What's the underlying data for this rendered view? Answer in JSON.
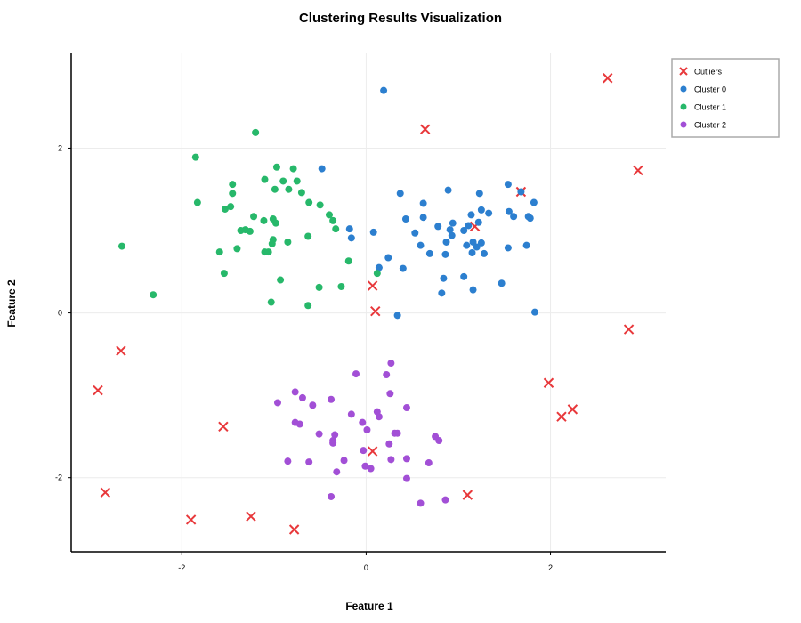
{
  "chart_data": {
    "type": "scatter",
    "title": "Clustering Results Visualization",
    "xlabel": "Feature 1",
    "ylabel": "Feature 2",
    "xlim": [
      -3.2,
      3.25
    ],
    "ylim": [
      -2.9,
      3.15
    ],
    "xticks": [
      -2,
      0,
      2
    ],
    "yticks": [
      -2,
      0,
      2
    ],
    "grid": true,
    "legend_position": "top-right",
    "series": [
      {
        "name": "Outliers",
        "marker": "x",
        "color": "#e8383b",
        "points": [
          [
            2.62,
            2.85
          ],
          [
            0.64,
            2.23
          ],
          [
            2.95,
            1.73
          ],
          [
            1.68,
            1.47
          ],
          [
            1.18,
            1.05
          ],
          [
            0.07,
            0.33
          ],
          [
            0.1,
            0.02
          ],
          [
            2.85,
            -0.2
          ],
          [
            -2.66,
            -0.46
          ],
          [
            -2.91,
            -0.94
          ],
          [
            1.98,
            -0.85
          ],
          [
            2.24,
            -1.17
          ],
          [
            2.12,
            -1.26
          ],
          [
            -1.55,
            -1.38
          ],
          [
            0.07,
            -1.68
          ],
          [
            -2.83,
            -2.18
          ],
          [
            1.1,
            -2.21
          ],
          [
            -1.9,
            -2.51
          ],
          [
            -1.25,
            -2.47
          ],
          [
            -0.78,
            -2.63
          ]
        ]
      },
      {
        "name": "Cluster 0",
        "marker": "o",
        "color": "#2c7fcf",
        "points": [
          [
            0.19,
            2.7
          ],
          [
            -0.48,
            1.75
          ],
          [
            1.54,
            1.56
          ],
          [
            0.37,
            1.45
          ],
          [
            0.89,
            1.49
          ],
          [
            1.23,
            1.45
          ],
          [
            1.68,
            1.47
          ],
          [
            1.82,
            1.34
          ],
          [
            0.62,
            1.33
          ],
          [
            1.25,
            1.25
          ],
          [
            1.33,
            1.21
          ],
          [
            1.14,
            1.19
          ],
          [
            1.55,
            1.23
          ],
          [
            1.6,
            1.17
          ],
          [
            1.76,
            1.17
          ],
          [
            1.78,
            1.15
          ],
          [
            0.43,
            1.14
          ],
          [
            0.62,
            1.16
          ],
          [
            1.22,
            1.1
          ],
          [
            0.94,
            1.09
          ],
          [
            1.11,
            1.06
          ],
          [
            0.78,
            1.05
          ],
          [
            0.91,
            1.01
          ],
          [
            0.53,
            0.97
          ],
          [
            0.08,
            0.98
          ],
          [
            1.06,
            1.0
          ],
          [
            0.93,
            0.94
          ],
          [
            1.16,
            0.86
          ],
          [
            1.25,
            0.85
          ],
          [
            0.87,
            0.86
          ],
          [
            0.59,
            0.82
          ],
          [
            1.09,
            0.82
          ],
          [
            1.2,
            0.8
          ],
          [
            1.54,
            0.79
          ],
          [
            1.74,
            0.82
          ],
          [
            1.15,
            0.73
          ],
          [
            1.28,
            0.72
          ],
          [
            0.69,
            0.72
          ],
          [
            0.86,
            0.71
          ],
          [
            0.24,
            0.67
          ],
          [
            0.4,
            0.54
          ],
          [
            0.14,
            0.55
          ],
          [
            1.06,
            0.44
          ],
          [
            0.84,
            0.42
          ],
          [
            1.47,
            0.36
          ],
          [
            1.16,
            0.28
          ],
          [
            0.82,
            0.24
          ],
          [
            0.34,
            -0.03
          ],
          [
            1.83,
            0.01
          ],
          [
            -0.16,
            0.91
          ],
          [
            -0.18,
            1.02
          ]
        ]
      },
      {
        "name": "Cluster 1",
        "marker": "o",
        "color": "#27b86a",
        "points": [
          [
            -1.2,
            2.19
          ],
          [
            -1.85,
            1.89
          ],
          [
            -0.97,
            1.77
          ],
          [
            -0.79,
            1.75
          ],
          [
            -1.1,
            1.62
          ],
          [
            -0.9,
            1.6
          ],
          [
            -0.75,
            1.6
          ],
          [
            -1.45,
            1.56
          ],
          [
            -0.99,
            1.5
          ],
          [
            -0.84,
            1.5
          ],
          [
            -0.7,
            1.46
          ],
          [
            -1.45,
            1.45
          ],
          [
            -0.62,
            1.34
          ],
          [
            -0.5,
            1.31
          ],
          [
            -1.83,
            1.34
          ],
          [
            -1.47,
            1.29
          ],
          [
            -1.53,
            1.26
          ],
          [
            -0.4,
            1.19
          ],
          [
            -1.22,
            1.17
          ],
          [
            -0.36,
            1.12
          ],
          [
            -1.01,
            1.14
          ],
          [
            -1.11,
            1.12
          ],
          [
            -0.98,
            1.09
          ],
          [
            -1.31,
            1.01
          ],
          [
            -1.36,
            1.0
          ],
          [
            -1.26,
            0.99
          ],
          [
            -0.33,
            1.02
          ],
          [
            -0.63,
            0.93
          ],
          [
            -1.01,
            0.89
          ],
          [
            -2.65,
            0.81
          ],
          [
            -0.85,
            0.86
          ],
          [
            -1.02,
            0.84
          ],
          [
            -1.4,
            0.78
          ],
          [
            -1.1,
            0.74
          ],
          [
            -1.06,
            0.74
          ],
          [
            -1.59,
            0.74
          ],
          [
            -0.19,
            0.63
          ],
          [
            -1.54,
            0.48
          ],
          [
            -0.93,
            0.4
          ],
          [
            -0.51,
            0.31
          ],
          [
            -0.27,
            0.32
          ],
          [
            -2.31,
            0.22
          ],
          [
            -1.03,
            0.13
          ],
          [
            -0.63,
            0.09
          ],
          [
            0.12,
            0.48
          ]
        ]
      },
      {
        "name": "Cluster 2",
        "marker": "o",
        "color": "#a24fd6",
        "points": [
          [
            0.27,
            -0.61
          ],
          [
            -0.11,
            -0.74
          ],
          [
            0.22,
            -0.75
          ],
          [
            -0.77,
            -0.96
          ],
          [
            0.26,
            -0.98
          ],
          [
            -0.69,
            -1.03
          ],
          [
            -0.38,
            -1.05
          ],
          [
            -0.96,
            -1.09
          ],
          [
            -0.58,
            -1.12
          ],
          [
            0.44,
            -1.15
          ],
          [
            0.12,
            -1.2
          ],
          [
            -0.16,
            -1.23
          ],
          [
            0.14,
            -1.26
          ],
          [
            -0.04,
            -1.33
          ],
          [
            -0.77,
            -1.33
          ],
          [
            -0.72,
            -1.35
          ],
          [
            0.01,
            -1.42
          ],
          [
            -0.51,
            -1.47
          ],
          [
            -0.34,
            -1.48
          ],
          [
            0.31,
            -1.46
          ],
          [
            0.34,
            -1.46
          ],
          [
            0.75,
            -1.5
          ],
          [
            -0.36,
            -1.55
          ],
          [
            0.79,
            -1.55
          ],
          [
            -0.36,
            -1.58
          ],
          [
            0.25,
            -1.59
          ],
          [
            -0.03,
            -1.67
          ],
          [
            0.44,
            -1.77
          ],
          [
            0.27,
            -1.78
          ],
          [
            -0.24,
            -1.79
          ],
          [
            -0.85,
            -1.8
          ],
          [
            -0.62,
            -1.81
          ],
          [
            0.68,
            -1.82
          ],
          [
            -0.01,
            -1.86
          ],
          [
            0.05,
            -1.89
          ],
          [
            -0.32,
            -1.93
          ],
          [
            0.44,
            -2.01
          ],
          [
            -0.38,
            -2.23
          ],
          [
            0.86,
            -2.27
          ],
          [
            0.59,
            -2.31
          ]
        ]
      }
    ]
  }
}
